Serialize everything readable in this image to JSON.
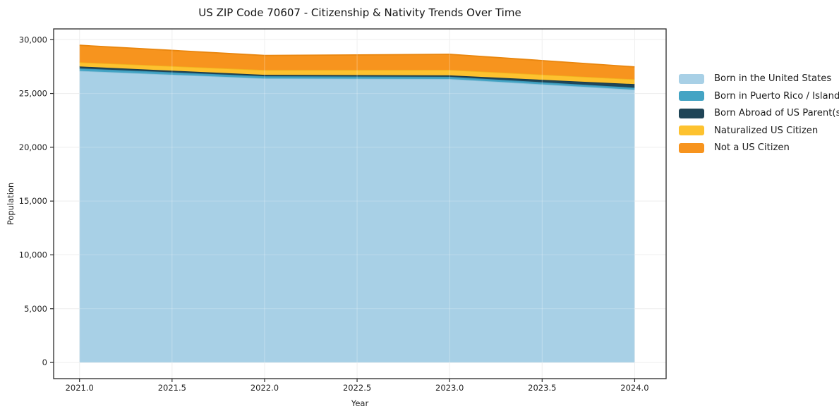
{
  "chart": {
    "title": "US ZIP Code 70607 - Citizenship & Nativity Trends Over Time",
    "xlabel": "Year",
    "ylabel": "Population"
  },
  "chart_data": {
    "type": "area",
    "stacked": true,
    "title": "US ZIP Code 70607 - Citizenship & Nativity Trends Over Time",
    "xlabel": "Year",
    "ylabel": "Population",
    "x": [
      2021,
      2022,
      2023,
      2024
    ],
    "series": [
      {
        "name": "Born in the United States",
        "color": "#a8d0e6",
        "edge_color": "#8fc2da",
        "values": [
          27100,
          26400,
          26350,
          25350
        ]
      },
      {
        "name": "Born in Puerto Rico / Islands",
        "color": "#44a4c4",
        "edge_color": "#3793b5",
        "values": [
          230,
          200,
          200,
          190
        ]
      },
      {
        "name": "Born Abroad of US Parent(s)",
        "color": "#1f4557",
        "edge_color": "#1a3a4a",
        "values": [
          180,
          130,
          130,
          330
        ]
      },
      {
        "name": "Naturalized US Citizen",
        "color": "#fdc22f",
        "edge_color": "#f0b31d",
        "values": [
          390,
          450,
          510,
          450
        ]
      },
      {
        "name": "Not a US Citizen",
        "color": "#f7941e",
        "edge_color": "#e9860e",
        "values": [
          1580,
          1350,
          1450,
          1150
        ]
      }
    ],
    "totals": [
      29480,
      28530,
      28640,
      27470
    ],
    "xticks": {
      "values": [
        2021,
        2021.5,
        2022,
        2022.5,
        2023,
        2023.5,
        2024
      ],
      "labels": [
        "2021.0",
        "2021.5",
        "2022.0",
        "2022.5",
        "2023.0",
        "2023.5",
        "2024.0"
      ]
    },
    "yticks": {
      "values": [
        0,
        5000,
        10000,
        15000,
        20000,
        25000,
        30000
      ],
      "labels": [
        "0",
        "5,000",
        "10,000",
        "15,000",
        "20,000",
        "25,000",
        "30,000"
      ]
    },
    "xlim": [
      2020.86,
      2024.17
    ],
    "ylim": [
      -1500,
      31000
    ],
    "grid": true,
    "legend_position": "right-outside",
    "colors": {
      "spine": "#2a2a2a",
      "gridline": "#e9e9e9",
      "tick_label": "#1f1f1f",
      "background": "#ffffff"
    }
  }
}
